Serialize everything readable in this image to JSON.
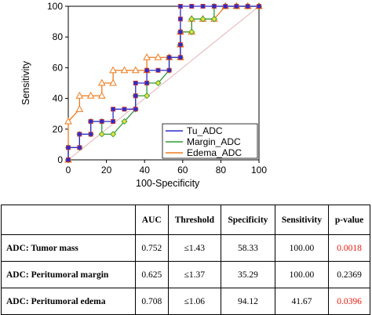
{
  "chart_data": {
    "type": "line",
    "xlabel": "100-Specificity",
    "ylabel": "Sensitivity",
    "xlim": [
      0,
      100
    ],
    "ylim": [
      0,
      100
    ],
    "x_ticks": [
      "0",
      "20",
      "40",
      "60",
      "80",
      "100"
    ],
    "y_ticks": [
      "0",
      "20",
      "40",
      "60",
      "80",
      "100"
    ],
    "legend_position": "bottom-right",
    "reference_line": true,
    "series": [
      {
        "name": "Tu_ADC",
        "color": "#2b2bd1",
        "marker": "square",
        "points": [
          [
            0,
            0
          ],
          [
            0,
            8
          ],
          [
            5.9,
            8
          ],
          [
            5.9,
            16.7
          ],
          [
            11.8,
            16.7
          ],
          [
            11.8,
            25
          ],
          [
            17.6,
            25
          ],
          [
            23.5,
            25
          ],
          [
            23.5,
            33
          ],
          [
            29.4,
            33
          ],
          [
            35.3,
            33
          ],
          [
            35.3,
            41.7
          ],
          [
            35.3,
            50
          ],
          [
            41.2,
            50
          ],
          [
            41.2,
            58.3
          ],
          [
            47.1,
            58.3
          ],
          [
            52.9,
            58.3
          ],
          [
            52.9,
            66.7
          ],
          [
            58.8,
            66.7
          ],
          [
            58.8,
            75
          ],
          [
            58.8,
            83.3
          ],
          [
            58.8,
            91.7
          ],
          [
            58.8,
            100
          ],
          [
            64.7,
            100
          ],
          [
            70.6,
            100
          ],
          [
            76.5,
            100
          ],
          [
            82.4,
            100
          ],
          [
            88.2,
            100
          ],
          [
            94.1,
            100
          ],
          [
            100,
            100
          ]
        ]
      },
      {
        "name": "Margin_ADC",
        "color": "#2e9a35",
        "marker": "diamond",
        "points": [
          [
            0,
            0
          ],
          [
            0,
            8
          ],
          [
            5.9,
            8
          ],
          [
            5.9,
            16.7
          ],
          [
            11.8,
            16.7
          ],
          [
            11.8,
            25
          ],
          [
            17.6,
            25
          ],
          [
            17.6,
            16.7
          ],
          [
            23.5,
            16.7
          ],
          [
            29.4,
            25
          ],
          [
            35.3,
            33
          ],
          [
            35.3,
            41.7
          ],
          [
            41.2,
            41.7
          ],
          [
            41.2,
            50
          ],
          [
            47.1,
            50
          ],
          [
            52.9,
            58.3
          ],
          [
            52.9,
            66.7
          ],
          [
            58.8,
            66.7
          ],
          [
            58.8,
            75
          ],
          [
            58.8,
            83.3
          ],
          [
            64.7,
            83.3
          ],
          [
            64.7,
            91.7
          ],
          [
            70.6,
            91.7
          ],
          [
            76.5,
            91.7
          ],
          [
            76.5,
            100
          ],
          [
            82.4,
            100
          ],
          [
            88.2,
            100
          ],
          [
            94.1,
            100
          ],
          [
            100,
            100
          ]
        ]
      },
      {
        "name": "Edema_ADC",
        "color": "#f07a1c",
        "marker": "triangle",
        "points": [
          [
            0,
            0
          ],
          [
            0,
            25
          ],
          [
            5.9,
            33
          ],
          [
            5.9,
            41.7
          ],
          [
            11.8,
            41.7
          ],
          [
            17.6,
            41.7
          ],
          [
            17.6,
            50
          ],
          [
            23.5,
            50
          ],
          [
            23.5,
            58.3
          ],
          [
            29.4,
            58.3
          ],
          [
            35.3,
            58.3
          ],
          [
            41.2,
            58.3
          ],
          [
            41.2,
            66.7
          ],
          [
            47.1,
            66.7
          ],
          [
            52.9,
            66.7
          ],
          [
            58.8,
            66.7
          ],
          [
            58.8,
            75
          ],
          [
            58.8,
            83.3
          ],
          [
            64.7,
            83.3
          ],
          [
            64.7,
            91.7
          ],
          [
            70.6,
            91.7
          ],
          [
            76.5,
            91.7
          ],
          [
            82.4,
            100
          ],
          [
            88.2,
            100
          ],
          [
            94.1,
            100
          ],
          [
            100,
            100
          ]
        ]
      }
    ]
  },
  "table": {
    "headers": [
      "",
      "AUC",
      "Threshold",
      "Specificity",
      "Sensitivity",
      "p-value"
    ],
    "rows": [
      {
        "label": "ADC: Tumor mass",
        "auc": "0.752",
        "threshold": "≤1.43",
        "specificity": "58.33",
        "sensitivity": "100.00",
        "p_value": "0.0018",
        "significant": true
      },
      {
        "label": "ADC: Peritumoral margin",
        "auc": "0.625",
        "threshold": "≤1.37",
        "specificity": "35.29",
        "sensitivity": "100.00",
        "p_value": "0.2369",
        "significant": false
      },
      {
        "label": "ADC: Peritumoral edema",
        "auc": "0.708",
        "threshold": "≤1.06",
        "specificity": "94.12",
        "sensitivity": "41.67",
        "p_value": "0.0396",
        "significant": true
      }
    ]
  }
}
